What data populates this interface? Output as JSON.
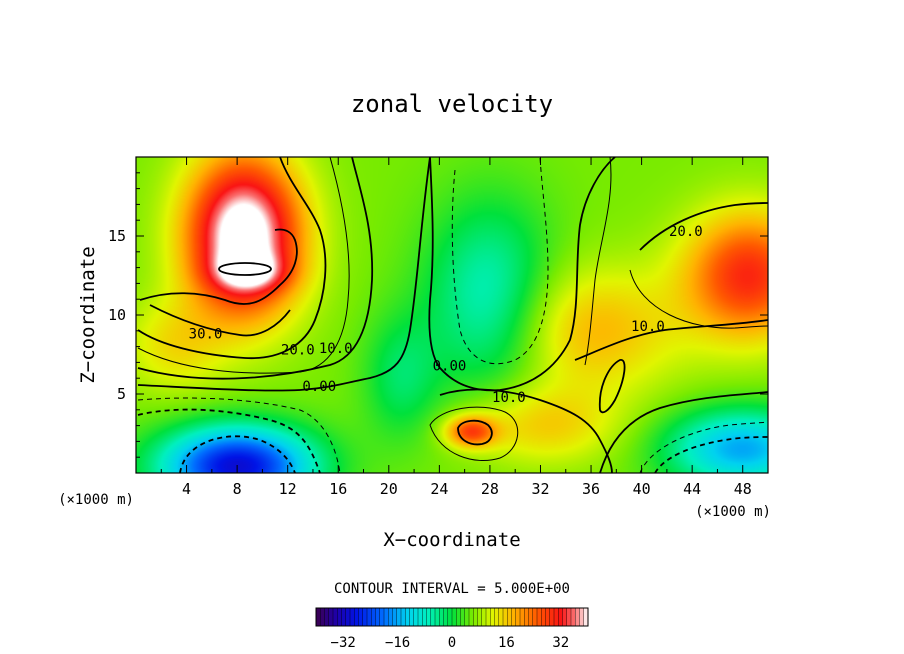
{
  "chart_data": {
    "type": "heatmap",
    "title": "zonal velocity",
    "xlabel": "X−coordinate",
    "ylabel": "Z−coordinate",
    "x_unit_label": "(×1000 m)",
    "z_unit_label": "(×1000 m)",
    "xlim": [
      0,
      50
    ],
    "ylim": [
      0,
      20
    ],
    "xticks": [
      4,
      8,
      12,
      16,
      20,
      24,
      28,
      32,
      36,
      40,
      44,
      48
    ],
    "yticks": [
      5,
      10,
      15
    ],
    "contour_interval_text": "CONTOUR INTERVAL = 5.000E+00",
    "contour_labels": [
      {
        "text": "30.0",
        "x": 5.5,
        "y": 8.5
      },
      {
        "text": "20.0",
        "x": 12.8,
        "y": 7.5
      },
      {
        "text": "10.0",
        "x": 15.8,
        "y": 7.6
      },
      {
        "text": "0.00",
        "x": 14.5,
        "y": 5.2
      },
      {
        "text": "0.00",
        "x": 24.8,
        "y": 6.5
      },
      {
        "text": "10.0",
        "x": 29.5,
        "y": 4.5
      },
      {
        "text": "10.0",
        "x": 40.5,
        "y": 9.0
      },
      {
        "text": "20.0",
        "x": 43.5,
        "y": 15.0
      }
    ],
    "colorbar": {
      "min": -40,
      "max": 40,
      "ticks": [
        "−32",
        "−16",
        "0",
        "16",
        "32"
      ],
      "tick_values": [
        -32,
        -16,
        0,
        16,
        32
      ]
    },
    "features": [
      {
        "kind": "jet maximum",
        "x": 9,
        "y": 12.7,
        "value": 40
      },
      {
        "kind": "eastern jet",
        "x": 48,
        "y": 12.5,
        "value": 28
      },
      {
        "kind": "local maximum",
        "x": 26.5,
        "y": 2.7,
        "value": 25
      },
      {
        "kind": "low-level minimum",
        "x": 8,
        "y": 0.5,
        "value": -32
      },
      {
        "kind": "low-level minimum",
        "x": 48,
        "y": 2,
        "value": -16
      },
      {
        "kind": "central minimum",
        "x": 28,
        "y": 11,
        "value": -5
      }
    ]
  }
}
